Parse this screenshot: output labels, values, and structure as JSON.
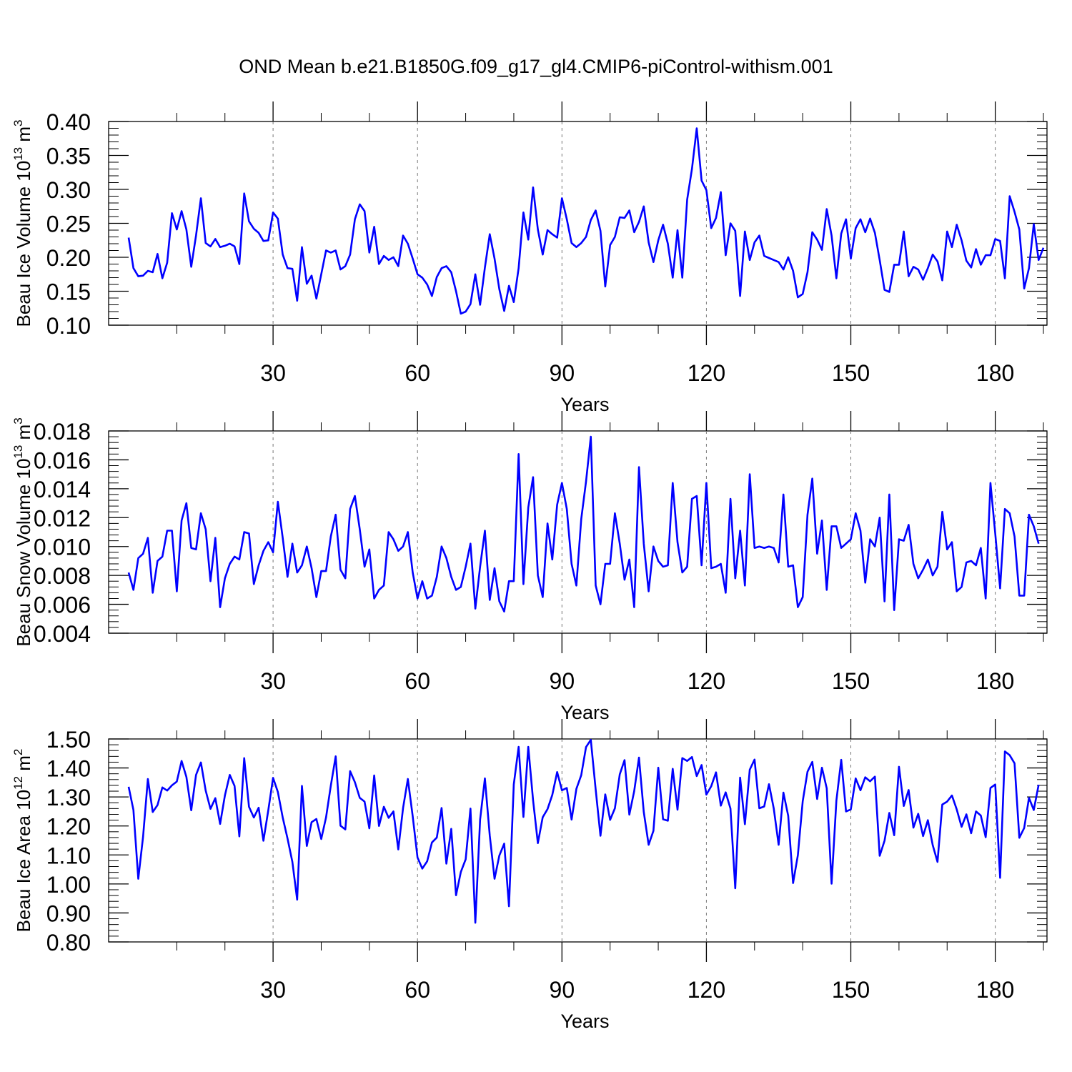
{
  "title": "OND Mean b.e21.B1850G.f09_g17_gl4.CMIP6-piControl-withism.001",
  "line_color": "#0000ff",
  "chart_data": [
    {
      "type": "line",
      "ylabel_main": "Beau Ice Volume 10",
      "ylabel_exp": "13",
      "ylabel_unit": " m",
      "ylabel_unit_exp": "3",
      "xlabel": "Years",
      "xlim": [
        0,
        190
      ],
      "ylim": [
        0.1,
        0.4
      ],
      "xticks": [
        30,
        60,
        90,
        120,
        150,
        180
      ],
      "yticks": [
        0.1,
        0.15,
        0.2,
        0.25,
        0.3,
        0.35,
        0.4
      ],
      "ytick_labels": [
        "0.10",
        "0.15",
        "0.20",
        "0.25",
        "0.30",
        "0.35",
        "0.40"
      ],
      "grid": "x-dashed",
      "series": [
        {
          "x_start": 0,
          "values": [
            0.229,
            0.184,
            0.172,
            0.173,
            0.18,
            0.178,
            0.205,
            0.169,
            0.192,
            0.265,
            0.241,
            0.268,
            0.241,
            0.186,
            0.232,
            0.287,
            0.221,
            0.216,
            0.227,
            0.215,
            0.217,
            0.22,
            0.216,
            0.19,
            0.294,
            0.253,
            0.242,
            0.236,
            0.224,
            0.225,
            0.266,
            0.257,
            0.204,
            0.184,
            0.183,
            0.136,
            0.215,
            0.161,
            0.173,
            0.139,
            0.175,
            0.21,
            0.207,
            0.21,
            0.182,
            0.187,
            0.204,
            0.256,
            0.278,
            0.268,
            0.207,
            0.245,
            0.19,
            0.202,
            0.196,
            0.2,
            0.187,
            0.232,
            0.22,
            0.198,
            0.175,
            0.17,
            0.16,
            0.143,
            0.171,
            0.184,
            0.187,
            0.178,
            0.15,
            0.117,
            0.12,
            0.131,
            0.175,
            0.13,
            0.185,
            0.234,
            0.198,
            0.153,
            0.121,
            0.158,
            0.134,
            0.184,
            0.266,
            0.226,
            0.303,
            0.241,
            0.204,
            0.24,
            0.234,
            0.229,
            0.287,
            0.256,
            0.221,
            0.215,
            0.221,
            0.23,
            0.255,
            0.269,
            0.239,
            0.157,
            0.218,
            0.23,
            0.259,
            0.258,
            0.269,
            0.237,
            0.252,
            0.275,
            0.222,
            0.193,
            0.225,
            0.248,
            0.22,
            0.17,
            0.24,
            0.17,
            0.285,
            0.33,
            0.39,
            0.313,
            0.299,
            0.243,
            0.258,
            0.296,
            0.203,
            0.25,
            0.239,
            0.143,
            0.238,
            0.196,
            0.222,
            0.232,
            0.202,
            0.199,
            0.196,
            0.193,
            0.182,
            0.2,
            0.18,
            0.141,
            0.146,
            0.178,
            0.237,
            0.226,
            0.211,
            0.271,
            0.232,
            0.169,
            0.235,
            0.256,
            0.198,
            0.243,
            0.256,
            0.237,
            0.257,
            0.236,
            0.196,
            0.152,
            0.149,
            0.189,
            0.189,
            0.238,
            0.172,
            0.186,
            0.182,
            0.167,
            0.184,
            0.204,
            0.194,
            0.166,
            0.238,
            0.215,
            0.248,
            0.225,
            0.195,
            0.185,
            0.212,
            0.189,
            0.203,
            0.203,
            0.227,
            0.224,
            0.169,
            0.29,
            0.267,
            0.241,
            0.154,
            0.184,
            0.249,
            0.196,
            0.214
          ]
        }
      ]
    },
    {
      "type": "line",
      "ylabel_main": "Beau Snow Volume 10",
      "ylabel_exp": "13",
      "ylabel_unit": " m",
      "ylabel_unit_exp": "3",
      "xlabel": "Years",
      "xlim": [
        0,
        190
      ],
      "ylim": [
        0.004,
        0.018
      ],
      "xticks": [
        30,
        60,
        90,
        120,
        150,
        180
      ],
      "yticks": [
        0.004,
        0.006,
        0.008,
        0.01,
        0.012,
        0.014,
        0.016,
        0.018
      ],
      "ytick_labels": [
        "0.004",
        "0.006",
        "0.008",
        "0.010",
        "0.012",
        "0.014",
        "0.016",
        "0.018"
      ],
      "grid": "x-dashed",
      "series": [
        {
          "x_start": 0,
          "values": [
            0.0082,
            0.007,
            0.0092,
            0.0095,
            0.0106,
            0.0068,
            0.009,
            0.0093,
            0.0111,
            0.0111,
            0.0069,
            0.0118,
            0.013,
            0.0099,
            0.0098,
            0.0123,
            0.0112,
            0.0076,
            0.0106,
            0.0058,
            0.0078,
            0.0088,
            0.0093,
            0.0091,
            0.011,
            0.0109,
            0.0074,
            0.0087,
            0.0097,
            0.0103,
            0.0096,
            0.0131,
            0.0106,
            0.0079,
            0.0102,
            0.0082,
            0.0087,
            0.01,
            0.0085,
            0.0065,
            0.0083,
            0.0083,
            0.0107,
            0.0122,
            0.0084,
            0.0078,
            0.0126,
            0.0135,
            0.0112,
            0.0086,
            0.0098,
            0.0064,
            0.007,
            0.0073,
            0.011,
            0.0105,
            0.0097,
            0.01,
            0.011,
            0.0082,
            0.0064,
            0.0076,
            0.0064,
            0.0066,
            0.0079,
            0.01,
            0.0092,
            0.0079,
            0.007,
            0.0072,
            0.0086,
            0.0102,
            0.0057,
            0.0086,
            0.0111,
            0.0063,
            0.0085,
            0.0062,
            0.0055,
            0.0076,
            0.0076,
            0.0164,
            0.0074,
            0.0127,
            0.0148,
            0.008,
            0.0065,
            0.0116,
            0.0091,
            0.0129,
            0.0144,
            0.0126,
            0.0088,
            0.0073,
            0.0119,
            0.0145,
            0.0176,
            0.0073,
            0.006,
            0.0088,
            0.0088,
            0.0123,
            0.0102,
            0.0077,
            0.0091,
            0.0058,
            0.0155,
            0.0102,
            0.0069,
            0.01,
            0.009,
            0.0086,
            0.0087,
            0.0144,
            0.0103,
            0.0082,
            0.0086,
            0.0133,
            0.0135,
            0.0087,
            0.0144,
            0.0085,
            0.0086,
            0.0088,
            0.0068,
            0.0133,
            0.0078,
            0.0111,
            0.0073,
            0.015,
            0.0099,
            0.01,
            0.0099,
            0.01,
            0.0099,
            0.0089,
            0.0136,
            0.0086,
            0.0087,
            0.0058,
            0.0065,
            0.0122,
            0.0147,
            0.0095,
            0.0118,
            0.007,
            0.0114,
            0.0114,
            0.0099,
            0.0102,
            0.0105,
            0.0123,
            0.0111,
            0.0075,
            0.0105,
            0.01,
            0.012,
            0.0062,
            0.0136,
            0.0056,
            0.0105,
            0.0104,
            0.0115,
            0.0088,
            0.0078,
            0.0084,
            0.0091,
            0.008,
            0.0086,
            0.0124,
            0.0098,
            0.0103,
            0.0069,
            0.0072,
            0.0089,
            0.009,
            0.0087,
            0.0099,
            0.0064,
            0.0144,
            0.0109,
            0.0071,
            0.0126,
            0.0123,
            0.0107,
            0.0066,
            0.0066,
            0.0122,
            0.0114,
            0.0102
          ]
        }
      ]
    },
    {
      "type": "line",
      "ylabel_main": "Beau Ice Area 10",
      "ylabel_exp": "12",
      "ylabel_unit": " m",
      "ylabel_unit_exp": "2",
      "xlabel": "Years",
      "xlim": [
        0,
        190
      ],
      "ylim": [
        0.8,
        1.5
      ],
      "xticks": [
        30,
        60,
        90,
        120,
        150,
        180
      ],
      "yticks": [
        0.8,
        0.9,
        1.0,
        1.1,
        1.2,
        1.3,
        1.4,
        1.5
      ],
      "ytick_labels": [
        "0.80",
        "0.90",
        "1.00",
        "1.10",
        "1.20",
        "1.30",
        "1.40",
        "1.50"
      ],
      "grid": "x-dashed",
      "series": [
        {
          "x_start": 0,
          "values": [
            1.335,
            1.255,
            1.018,
            1.163,
            1.362,
            1.248,
            1.272,
            1.333,
            1.322,
            1.34,
            1.353,
            1.424,
            1.369,
            1.254,
            1.376,
            1.419,
            1.322,
            1.259,
            1.296,
            1.207,
            1.305,
            1.376,
            1.338,
            1.164,
            1.434,
            1.266,
            1.229,
            1.263,
            1.149,
            1.254,
            1.366,
            1.317,
            1.229,
            1.157,
            1.076,
            0.946,
            1.338,
            1.131,
            1.213,
            1.224,
            1.155,
            1.229,
            1.339,
            1.44,
            1.201,
            1.188,
            1.389,
            1.351,
            1.297,
            1.284,
            1.192,
            1.374,
            1.2,
            1.266,
            1.228,
            1.25,
            1.119,
            1.262,
            1.362,
            1.233,
            1.091,
            1.053,
            1.078,
            1.143,
            1.16,
            1.262,
            1.07,
            1.19,
            0.961,
            1.041,
            1.085,
            1.26,
            0.866,
            1.222,
            1.364,
            1.167,
            1.018,
            1.098,
            1.139,
            0.923,
            1.343,
            1.473,
            1.231,
            1.473,
            1.289,
            1.141,
            1.23,
            1.258,
            1.307,
            1.386,
            1.323,
            1.331,
            1.222,
            1.328,
            1.375,
            1.472,
            1.497,
            1.326,
            1.166,
            1.309,
            1.221,
            1.261,
            1.378,
            1.427,
            1.239,
            1.32,
            1.436,
            1.248,
            1.135,
            1.183,
            1.401,
            1.223,
            1.218,
            1.397,
            1.256,
            1.434,
            1.424,
            1.438,
            1.372,
            1.41,
            1.308,
            1.337,
            1.385,
            1.27,
            1.316,
            1.26,
            0.985,
            1.367,
            1.206,
            1.394,
            1.429,
            1.261,
            1.267,
            1.344,
            1.26,
            1.135,
            1.315,
            1.235,
            1.003,
            1.099,
            1.285,
            1.387,
            1.421,
            1.293,
            1.401,
            1.33,
            1.001,
            1.287,
            1.428,
            1.25,
            1.257,
            1.364,
            1.323,
            1.368,
            1.354,
            1.37,
            1.097,
            1.149,
            1.245,
            1.168,
            1.404,
            1.269,
            1.324,
            1.194,
            1.242,
            1.165,
            1.22,
            1.134,
            1.076,
            1.274,
            1.284,
            1.305,
            1.257,
            1.197,
            1.24,
            1.175,
            1.25,
            1.236,
            1.161,
            1.331,
            1.343,
            1.021,
            1.457,
            1.444,
            1.416,
            1.159,
            1.193,
            1.297,
            1.255,
            1.342
          ]
        }
      ]
    }
  ]
}
